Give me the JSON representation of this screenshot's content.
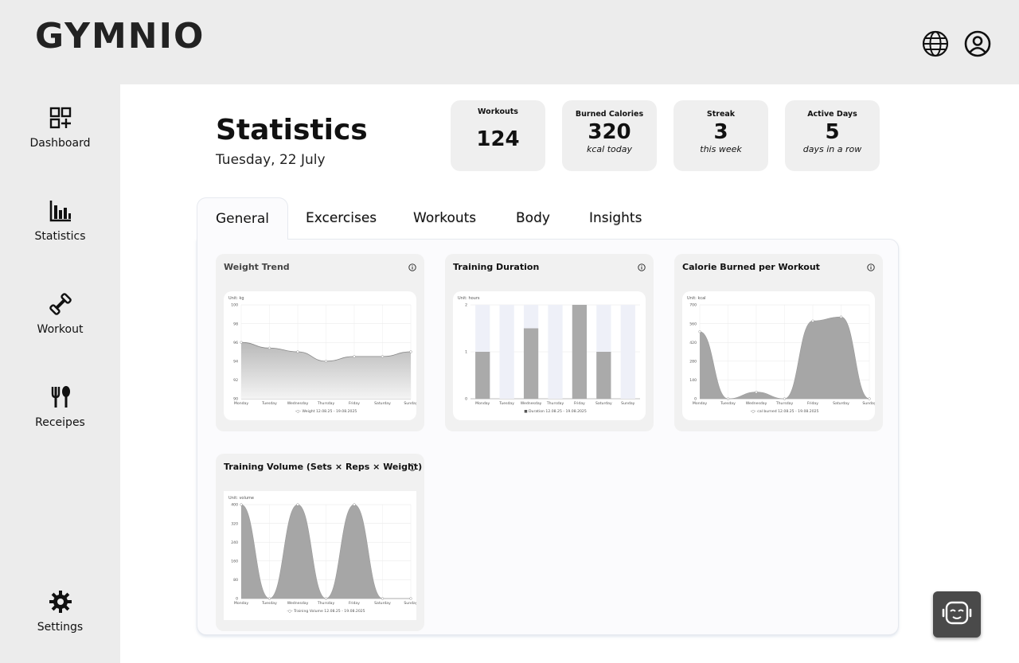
{
  "app": {
    "logo": "GYMNIO"
  },
  "header_icons": [
    "globe-icon",
    "user-circle-icon"
  ],
  "sidebar": {
    "items": [
      {
        "label": "Dashboard",
        "icon": "grid-plus-icon"
      },
      {
        "label": "Statistics",
        "icon": "bar-chart-icon"
      },
      {
        "label": "Workout",
        "icon": "dumbbell-icon"
      },
      {
        "label": "Receipes",
        "icon": "fork-spoon-icon"
      },
      {
        "label": "Settings",
        "icon": "gear-icon"
      }
    ]
  },
  "page": {
    "title": "Statistics",
    "date": "Tuesday, 22 July"
  },
  "stats": [
    {
      "label": "Workouts",
      "value": "124",
      "sub": ""
    },
    {
      "label": "Burned Calories",
      "value": "320",
      "sub": "kcal today"
    },
    {
      "label": "Streak",
      "value": "3",
      "sub": "this week"
    },
    {
      "label": "Active Days",
      "value": "5",
      "sub": "days in a row"
    }
  ],
  "tabs": [
    "General",
    "Excercises",
    "Workouts",
    "Body",
    "Insights"
  ],
  "days": [
    "Monday",
    "Tuesday",
    "Wednesday",
    "Thursday",
    "Friday",
    "Saturday",
    "Sunday"
  ],
  "cards": {
    "weight": {
      "title": "Weight Trend",
      "unit": "Unit: kg",
      "legend": "-○- Weight 12.08.25 - 19.08.2025"
    },
    "duration": {
      "title": "Training Duration",
      "unit": "Unit: hours",
      "legend": "■ Duration 12.08.25 - 19.08.2025"
    },
    "calories": {
      "title": "Calorie Burned per Workout",
      "unit": "Unit: kcal",
      "legend": "-○- cal burned 12.08.25 - 19.08.2025"
    },
    "volume": {
      "title": "Training Volume (Sets × Reps × Weight)",
      "unit": "Unit: volume",
      "legend": "-○- Training Volume 12.08.25 - 19.08.2025"
    }
  },
  "chart_data": [
    {
      "type": "area",
      "title": "Weight Trend",
      "ylabel": "Unit: kg",
      "categories": [
        "Monday",
        "Tuesday",
        "Wednesday",
        "Thursday",
        "Friday",
        "Saturday",
        "Sunday"
      ],
      "ylim": [
        90,
        100
      ],
      "yticks": [
        90,
        92,
        94,
        96,
        98,
        100
      ],
      "series": [
        {
          "name": "Weight 12.08.25 - 19.08.2025",
          "values": [
            96,
            95.4,
            95,
            94,
            94.5,
            94.5,
            95
          ]
        }
      ]
    },
    {
      "type": "bar",
      "title": "Training Duration",
      "ylabel": "Unit: hours",
      "categories": [
        "Monday",
        "Tuesday",
        "Wednesday",
        "Thursday",
        "Friday",
        "Saturday",
        "Sunday"
      ],
      "ylim": [
        0,
        2
      ],
      "yticks": [
        0,
        1,
        2
      ],
      "series": [
        {
          "name": "Duration 12.08.25 - 19.08.2025",
          "values": [
            1,
            0,
            1.5,
            0,
            2,
            1,
            0
          ]
        }
      ]
    },
    {
      "type": "area",
      "title": "Calorie Burned per Workout",
      "ylabel": "Unit: kcal",
      "categories": [
        "Monday",
        "Tuesday",
        "Wednesday",
        "Thursday",
        "Friday",
        "Saturday",
        "Sunday"
      ],
      "ylim": [
        0,
        700
      ],
      "yticks": [
        0,
        140,
        280,
        420,
        560,
        700
      ],
      "series": [
        {
          "name": "cal burned 12.08.25 - 19.08.2025",
          "values": [
            500,
            0,
            50,
            0,
            580,
            610,
            0
          ]
        }
      ]
    },
    {
      "type": "area",
      "title": "Training Volume (Sets × Reps × Weight)",
      "ylabel": "Unit: volume",
      "categories": [
        "Monday",
        "Tuesday",
        "Wednesday",
        "Thursday",
        "Friday",
        "Saturday",
        "Sunday"
      ],
      "ylim": [
        0,
        400
      ],
      "yticks": [
        0,
        80,
        160,
        240,
        320,
        400
      ],
      "series": [
        {
          "name": "Training Volume 12.08.25 - 19.08.2025",
          "values": [
            400,
            0,
            400,
            0,
            400,
            0,
            0
          ]
        }
      ]
    }
  ]
}
